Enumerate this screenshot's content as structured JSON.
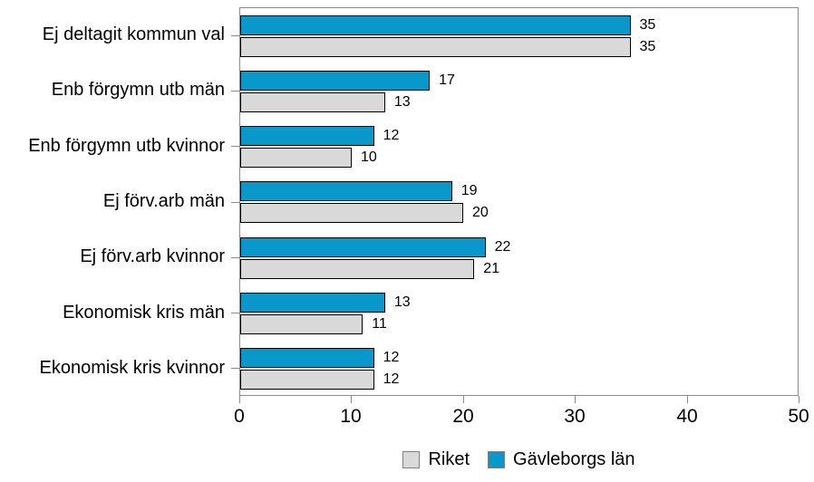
{
  "chart_data": {
    "type": "bar",
    "orientation": "horizontal",
    "title": "",
    "xlabel": "",
    "ylabel": "",
    "xlim": [
      0,
      50
    ],
    "x_ticks": [
      0,
      10,
      20,
      30,
      40,
      50
    ],
    "grid": false,
    "value_labels": true,
    "categories": [
      "Ej deltagit kommun val",
      "Enb förgymn utb män",
      "Enb förgymn utb kvinnor",
      "Ej förv.arb män",
      "Ej förv.arb kvinnor",
      "Ekonomisk kris män",
      "Ekonomisk kris kvinnor"
    ],
    "series": [
      {
        "name": "Gävleborgs län",
        "color": "#0a97c9",
        "position_in_group": "top",
        "values": [
          35,
          17,
          12,
          19,
          22,
          13,
          12
        ]
      },
      {
        "name": "Riket",
        "color": "#d9d9d9",
        "position_in_group": "bottom",
        "values": [
          35,
          13,
          10,
          20,
          21,
          11,
          12
        ]
      }
    ],
    "legend": {
      "position": "bottom-center",
      "entries": [
        {
          "label": "Riket",
          "color": "#d9d9d9"
        },
        {
          "label": "Gävleborgs län",
          "color": "#0a97c9"
        }
      ]
    }
  },
  "colors": {
    "bar_border": "#000000",
    "axis": "#8a8a8a",
    "text": "#000000",
    "background": "#ffffff"
  }
}
